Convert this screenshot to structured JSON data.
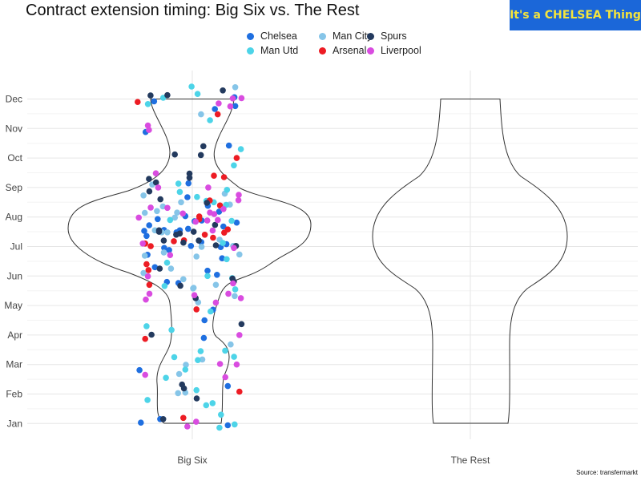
{
  "brand_label": "It's a CHELSEA Thing",
  "source_label": "Source: transfermarkt",
  "chart_data": {
    "type": "scatter",
    "title": "Contract extension timing: Big Six vs. The Rest",
    "xlabel": "",
    "ylabel": "",
    "x_categories": [
      "Big Six",
      "The Rest"
    ],
    "y_ticks": [
      "Jan",
      "Feb",
      "Mar",
      "Apr",
      "May",
      "Jun",
      "Jul",
      "Aug",
      "Sep",
      "Oct",
      "Nov",
      "Dec"
    ],
    "ylim": [
      0.6,
      12.7
    ],
    "grid": true,
    "legend_position": "top",
    "series": [
      {
        "name": "Chelsea",
        "color": "#1f6fe0",
        "points": [
          [
            -0.371,
            1.03
          ],
          [
            -0.232,
            1.15
          ],
          [
            0.256,
            0.94
          ],
          [
            0.083,
            3.9
          ],
          [
            -0.311,
            7.72
          ],
          [
            0.065,
            7.15
          ],
          [
            0.112,
            8.38
          ],
          [
            -0.035,
            8.67
          ],
          [
            -0.276,
            11.92
          ],
          [
            0.11,
            6.18
          ],
          [
            -0.114,
            7.48
          ],
          [
            0.224,
            7.68
          ],
          [
            0.178,
            6.04
          ],
          [
            0.163,
            11.66
          ],
          [
            -0.337,
            10.88
          ],
          [
            -0.05,
            8.03
          ],
          [
            -0.323,
            6.72
          ],
          [
            -0.203,
            6.95
          ],
          [
            0.193,
            8.18
          ],
          [
            0.246,
            7.08
          ],
          [
            -0.27,
            6.3
          ],
          [
            0.205,
            6.98
          ],
          [
            0.264,
            10.42
          ],
          [
            -0.183,
            5.8
          ],
          [
            -0.1,
            5.76
          ],
          [
            0.15,
            4.86
          ],
          [
            -0.01,
            7.02
          ],
          [
            -0.33,
            7.36
          ],
          [
            0.31,
            11.76
          ],
          [
            -0.09,
            7.55
          ],
          [
            0.32,
            7.81
          ],
          [
            -0.347,
            7.53
          ],
          [
            -0.25,
            7.93
          ],
          [
            -0.167,
            6.88
          ],
          [
            0.215,
            6.6
          ],
          [
            0.304,
            12.06
          ],
          [
            0.088,
            4.5
          ],
          [
            -0.204,
            7.56
          ],
          [
            -0.028,
            9.14
          ],
          [
            -0.381,
            2.81
          ],
          [
            0.256,
            2.27
          ],
          [
            0.068,
            7.88
          ],
          [
            -0.03,
            7.6
          ],
          [
            0.016,
            7.86
          ]
        ]
      },
      {
        "name": "Man City",
        "color": "#86c5e8",
        "points": [
          [
            -0.352,
            8.73
          ],
          [
            -0.289,
            9.1
          ],
          [
            -0.18,
            7.48
          ],
          [
            -0.27,
            7.55
          ],
          [
            -0.22,
            7.48
          ],
          [
            0.295,
            7.02
          ],
          [
            -0.205,
            6.8
          ],
          [
            -0.126,
            7.98
          ],
          [
            0.03,
            6.66
          ],
          [
            -0.154,
            6.25
          ],
          [
            0.01,
            5.6
          ],
          [
            0.17,
            5.7
          ],
          [
            -0.352,
            6.1
          ],
          [
            0.042,
            5.11
          ],
          [
            0.072,
            3.17
          ],
          [
            0.063,
            11.48
          ],
          [
            -0.046,
            2.99
          ],
          [
            -0.103,
            2.03
          ],
          [
            0.271,
            8.42
          ],
          [
            0.197,
            7.23
          ],
          [
            0.31,
            12.4
          ],
          [
            -0.343,
            8.14
          ],
          [
            0.234,
            8.79
          ],
          [
            0.306,
            5.32
          ],
          [
            0.34,
            6.73
          ],
          [
            0.277,
            3.68
          ],
          [
            0.006,
            5.58
          ],
          [
            -0.081,
            8.5
          ],
          [
            -0.255,
            8.2
          ],
          [
            -0.343,
            6.69
          ],
          [
            -0.212,
            8.36
          ],
          [
            0.067,
            6.99
          ],
          [
            -0.05,
            2.05
          ],
          [
            -0.065,
            5.89
          ],
          [
            -0.095,
            2.68
          ],
          [
            -0.11,
            8.15
          ]
        ]
      },
      {
        "name": "Man Utd",
        "color": "#4dd4e8",
        "points": [
          [
            -0.32,
            11.83
          ],
          [
            -0.21,
            12.04
          ],
          [
            -0.16,
            7.9
          ],
          [
            -0.33,
            4.3
          ],
          [
            -0.15,
            4.17
          ],
          [
            0.244,
            8.41
          ],
          [
            0.31,
            5.55
          ],
          [
            0.3,
            9.75
          ],
          [
            0.35,
            10.3
          ],
          [
            0.25,
            8.92
          ],
          [
            -0.005,
            12.42
          ],
          [
            -0.323,
            1.8
          ],
          [
            0.1,
            1.62
          ],
          [
            0.102,
            8.55
          ],
          [
            -0.05,
            2.83
          ],
          [
            -0.13,
            3.25
          ],
          [
            0.146,
            1.69
          ],
          [
            0.237,
            3.47
          ],
          [
            0.301,
            3.26
          ],
          [
            -0.19,
            2.55
          ],
          [
            0.284,
            7.87
          ],
          [
            -0.182,
            6.45
          ],
          [
            0.06,
            3.45
          ],
          [
            0.03,
            2.13
          ],
          [
            -0.09,
            8.85
          ],
          [
            0.22,
            7.12
          ],
          [
            0.196,
            0.86
          ],
          [
            0.132,
            4.8
          ],
          [
            0.305,
            0.97
          ],
          [
            0.038,
            12.17
          ],
          [
            0.11,
            6.0
          ],
          [
            0.128,
            11.28
          ],
          [
            0.248,
            6.57
          ],
          [
            -0.2,
            5.66
          ],
          [
            0.04,
            3.15
          ],
          [
            0.207,
            1.3
          ],
          [
            0.288,
            5.93
          ],
          [
            0.034,
            8.68
          ],
          [
            0.155,
            8.5
          ],
          [
            -0.1,
            9.13
          ]
        ]
      },
      {
        "name": "Arsenal",
        "color": "#ed1c24",
        "points": [
          [
            -0.394,
            11.9
          ],
          [
            -0.34,
            3.87
          ],
          [
            -0.33,
            6.4
          ],
          [
            -0.3,
            7.01
          ],
          [
            -0.31,
            5.7
          ],
          [
            -0.316,
            6.2
          ],
          [
            -0.133,
            7.18
          ],
          [
            -0.06,
            7.21
          ],
          [
            0.03,
            4.87
          ],
          [
            -0.065,
            1.19
          ],
          [
            0.09,
            7.4
          ],
          [
            0.05,
            8.02
          ],
          [
            0.05,
            7.92
          ],
          [
            0.2,
            8.39
          ],
          [
            0.23,
            7.47
          ],
          [
            0.32,
            10.0
          ],
          [
            0.34,
            2.08
          ],
          [
            0.256,
            7.58
          ],
          [
            0.229,
            9.35
          ],
          [
            0.183,
            11.48
          ],
          [
            0.126,
            8.56
          ],
          [
            0.156,
            9.4
          ],
          [
            -0.34,
            7.1
          ],
          [
            0.15,
            7.3
          ]
        ]
      },
      {
        "name": "Spurs",
        "color": "#233a5e",
        "points": [
          [
            -0.313,
            9.29
          ],
          [
            -0.31,
            8.87
          ],
          [
            -0.301,
            12.12
          ],
          [
            -0.262,
            9.17
          ],
          [
            -0.23,
            8.6
          ],
          [
            -0.24,
            7.5
          ],
          [
            -0.206,
            7.2
          ],
          [
            -0.116,
            7.4
          ],
          [
            0.17,
            7.04
          ],
          [
            0.29,
            5.91
          ],
          [
            0.105,
            8.48
          ],
          [
            0.164,
            7.73
          ],
          [
            -0.235,
            6.25
          ],
          [
            -0.24,
            7.55
          ],
          [
            0.315,
            7.02
          ],
          [
            0.3,
            5.81
          ],
          [
            0.062,
            10.1
          ],
          [
            0.08,
            10.4
          ],
          [
            -0.02,
            9.47
          ],
          [
            0.22,
            12.29
          ],
          [
            -0.086,
            5.67
          ],
          [
            -0.064,
            7.13
          ],
          [
            -0.21,
            1.15
          ],
          [
            -0.294,
            4.01
          ],
          [
            0.355,
            4.37
          ],
          [
            -0.18,
            12.13
          ],
          [
            0.047,
            7.2
          ],
          [
            -0.09,
            7.44
          ],
          [
            0.032,
            1.85
          ],
          [
            -0.074,
            2.32
          ],
          [
            -0.126,
            10.12
          ],
          [
            -0.02,
            9.33
          ],
          [
            -0.06,
            2.19
          ],
          [
            0.024,
            5.25
          ],
          [
            0.01,
            7.5
          ]
        ]
      },
      {
        "name": "Liverpool",
        "color": "#d94ce0",
        "points": [
          [
            -0.386,
            7.98
          ],
          [
            -0.357,
            7.1
          ],
          [
            -0.32,
            11.1
          ],
          [
            -0.313,
            10.95
          ],
          [
            -0.263,
            9.48
          ],
          [
            0.292,
            12.02
          ],
          [
            0.19,
            11.85
          ],
          [
            -0.3,
            8.32
          ],
          [
            -0.246,
            9.0
          ],
          [
            0.115,
            9.0
          ],
          [
            0.108,
            7.88
          ],
          [
            0.127,
            8.15
          ],
          [
            0.158,
            8.1
          ],
          [
            0.024,
            7.84
          ],
          [
            0.184,
            7.9
          ],
          [
            0.225,
            8.27
          ],
          [
            0.335,
            8.75
          ],
          [
            -0.18,
            8.31
          ],
          [
            -0.32,
            5.99
          ],
          [
            0.333,
            8.57
          ],
          [
            0.274,
            11.75
          ],
          [
            -0.068,
            8.12
          ],
          [
            0.294,
            5.75
          ],
          [
            0.3,
            6.95
          ],
          [
            -0.309,
            5.4
          ],
          [
            -0.34,
            2.65
          ],
          [
            0.26,
            5.4
          ],
          [
            0.238,
            2.57
          ],
          [
            0.355,
            12.03
          ],
          [
            -0.036,
            0.9
          ],
          [
            0.028,
            1.06
          ],
          [
            0.147,
            7.54
          ],
          [
            0.2,
            3.02
          ],
          [
            0.32,
            3.0
          ],
          [
            0.17,
            5.1
          ],
          [
            0.34,
            4.0
          ],
          [
            -0.16,
            6.71
          ],
          [
            0.015,
            5.35
          ],
          [
            0.35,
            5.25
          ],
          [
            -0.335,
            5.2
          ]
        ]
      }
    ]
  }
}
